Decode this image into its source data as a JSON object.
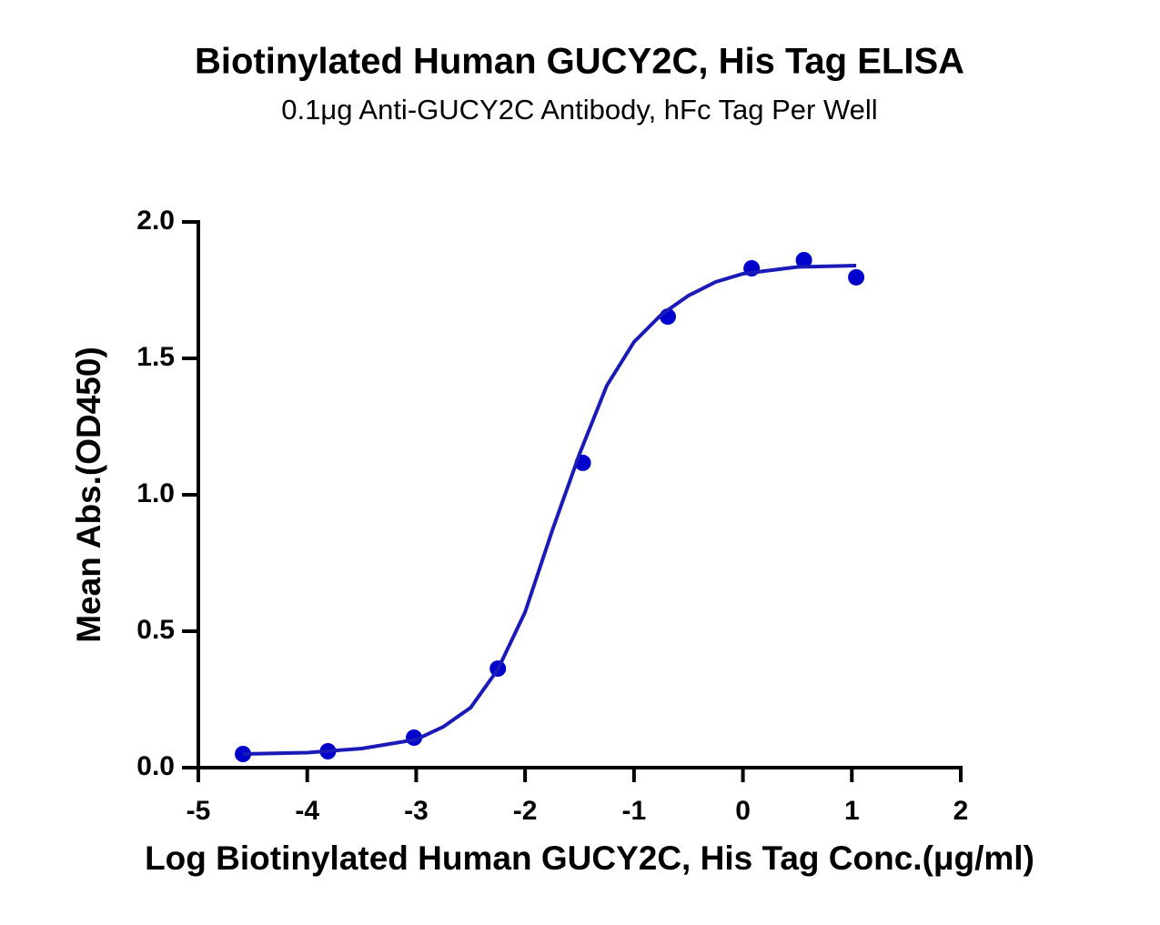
{
  "chart_data": {
    "type": "scatter",
    "title": "Biotinylated Human GUCY2C, His Tag ELISA",
    "subtitle": "0.1μg Anti-GUCY2C Antibody, hFc Tag Per Well",
    "x_label": "Log Biotinylated Human GUCY2C, His Tag Conc.(μg/ml)",
    "y_label": "Mean Abs.(OD450)",
    "series": [
      {
        "type": "scatter",
        "color": "#0000cc",
        "x": [
          -4.59,
          -3.81,
          -3.02,
          -2.25,
          -1.47,
          -0.69,
          0.08,
          0.56,
          1.04
        ],
        "values": [
          0.05,
          0.06,
          0.11,
          0.363,
          1.117,
          1.653,
          1.83,
          1.86,
          1.797
        ]
      },
      {
        "type": "line",
        "color": "#1a1ab8",
        "x": [
          -4.59,
          -4.0,
          -3.5,
          -3.0,
          -2.75,
          -2.5,
          -2.25,
          -2.0,
          -1.75,
          -1.5,
          -1.25,
          -1.0,
          -0.75,
          -0.5,
          -0.25,
          0,
          0.5,
          1.04
        ],
        "values": [
          0.05,
          0.055,
          0.07,
          0.103,
          0.15,
          0.22,
          0.36,
          0.57,
          0.87,
          1.15,
          1.4,
          1.56,
          1.66,
          1.73,
          1.78,
          1.81,
          1.835,
          1.84
        ]
      }
    ],
    "xlim": [
      -5,
      2
    ],
    "xticks": [
      -5,
      -4,
      -3,
      -2,
      -1,
      0,
      1,
      2
    ],
    "ylim": [
      0,
      2
    ],
    "yticks": [
      {
        "value": 0,
        "label": "0.0"
      },
      0.5,
      {
        "value": 1,
        "label": "1.0"
      },
      1.5,
      {
        "value": 2,
        "label": "2.0"
      }
    ]
  }
}
